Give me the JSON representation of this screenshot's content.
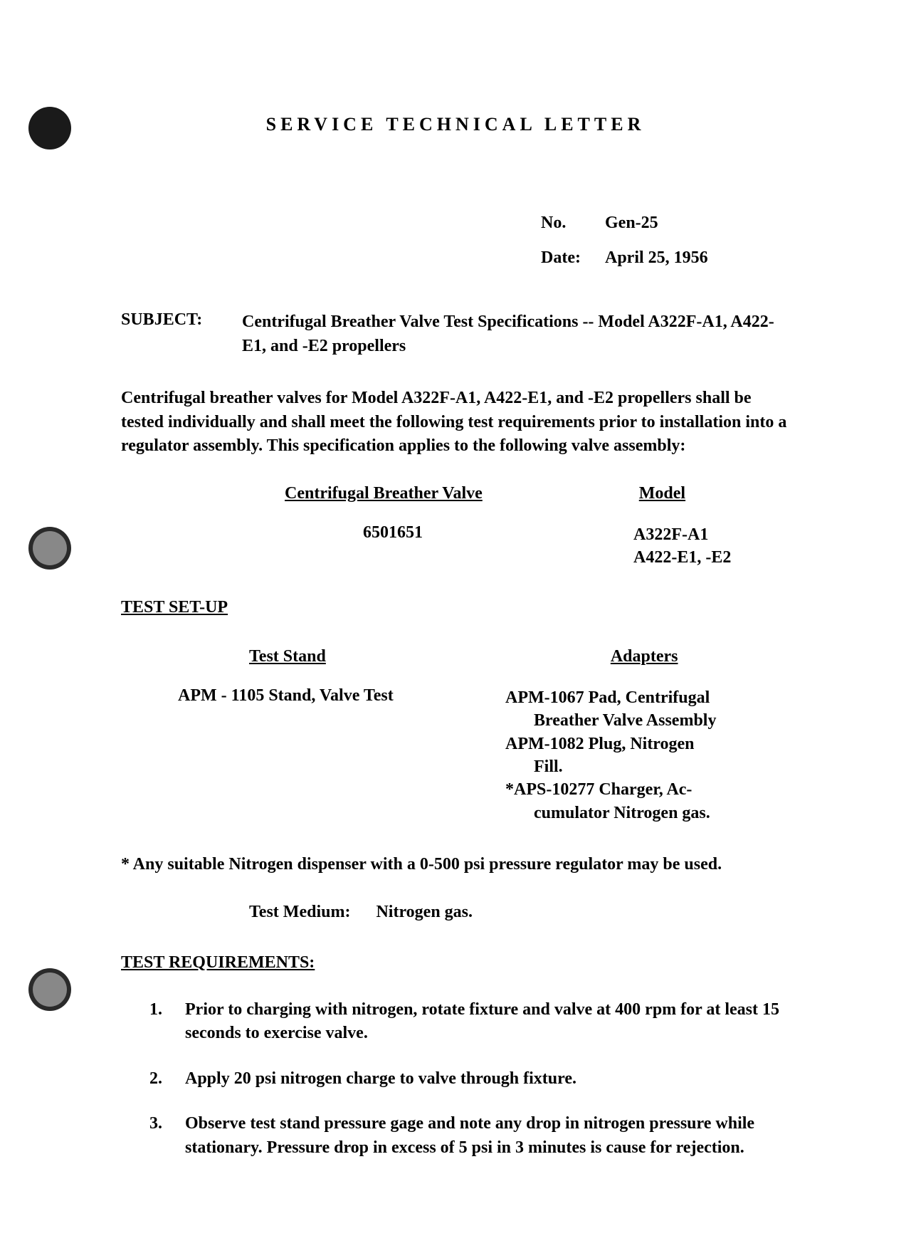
{
  "title": "SERVICE TECHNICAL LETTER",
  "meta": {
    "no_label": "No.",
    "no_value": "Gen-25",
    "date_label": "Date:",
    "date_value": "April 25, 1956"
  },
  "subject": {
    "label": "SUBJECT:",
    "text": "Centrifugal Breather Valve Test Specifications -- Model A322F-A1, A422-E1, and -E2 propellers"
  },
  "intro": "Centrifugal breather valves for Model A322F-A1, A422-E1, and -E2 propellers shall be tested individually and shall meet the following test requirements prior to installation into a regulator assembly. This specification applies to the following valve assembly:",
  "valve_table": {
    "col1_header": "Centrifugal Breather Valve",
    "col2_header": "Model",
    "col1_value": "6501651",
    "col2_value": "A322F-A1\nA422-E1, -E2"
  },
  "test_setup": {
    "header": "TEST SET-UP",
    "col1_header": "Test Stand",
    "col2_header": "Adapters",
    "stand": "APM - 1105 Stand, Valve Test",
    "adapters_line1": "APM-1067 Pad, Centrifugal",
    "adapters_line1b": "Breather Valve Assembly",
    "adapters_line2": "APM-1082 Plug, Nitrogen",
    "adapters_line2b": "Fill.",
    "adapters_line3": "*APS-10277 Charger, Ac-",
    "adapters_line3b": "cumulator Nitrogen gas."
  },
  "footnote": "* Any suitable Nitrogen dispenser with a 0-500 psi pressure regulator may be used.",
  "medium": {
    "label": "Test Medium:",
    "value": "Nitrogen gas."
  },
  "requirements": {
    "header": "TEST REQUIREMENTS:",
    "items": [
      {
        "num": "1.",
        "text": "Prior to charging with nitrogen, rotate fixture and valve at 400 rpm for at least 15 seconds to exercise valve."
      },
      {
        "num": "2.",
        "text": "Apply 20 psi nitrogen charge to valve through fixture."
      },
      {
        "num": "3.",
        "text": "Observe test stand pressure gage and note any drop in nitrogen pressure while stationary. Pressure drop in excess of 5 psi in 3 minutes is cause for rejection."
      }
    ]
  }
}
